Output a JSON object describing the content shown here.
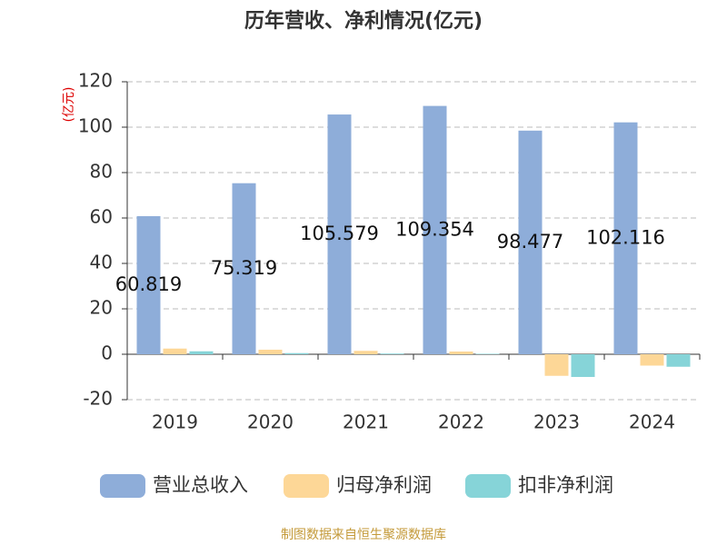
{
  "chart_data": {
    "type": "bar",
    "title": "历年营收、净利情况(亿元)",
    "y_label": "(亿元)",
    "categories": [
      "2019",
      "2020",
      "2021",
      "2022",
      "2023",
      "2024"
    ],
    "series": [
      {
        "name": "营业总收入",
        "color": "#8eadd9",
        "values": [
          60.819,
          75.319,
          105.579,
          109.354,
          98.477,
          102.116
        ]
      },
      {
        "name": "归母净利润",
        "color": "#fdd797",
        "values": [
          2.5,
          2.0,
          1.5,
          1.2,
          -9.5,
          -5.0
        ]
      },
      {
        "name": "扣非净利润",
        "color": "#86d4d8",
        "values": [
          1.3,
          0.5,
          0.3,
          0.2,
          -10.0,
          -5.5
        ]
      }
    ],
    "ylim": [
      -20,
      120
    ],
    "yticks": [
      -20,
      0,
      20,
      40,
      60,
      80,
      100,
      120
    ],
    "grid": true,
    "source": "制图数据来自恒生聚源数据库"
  }
}
